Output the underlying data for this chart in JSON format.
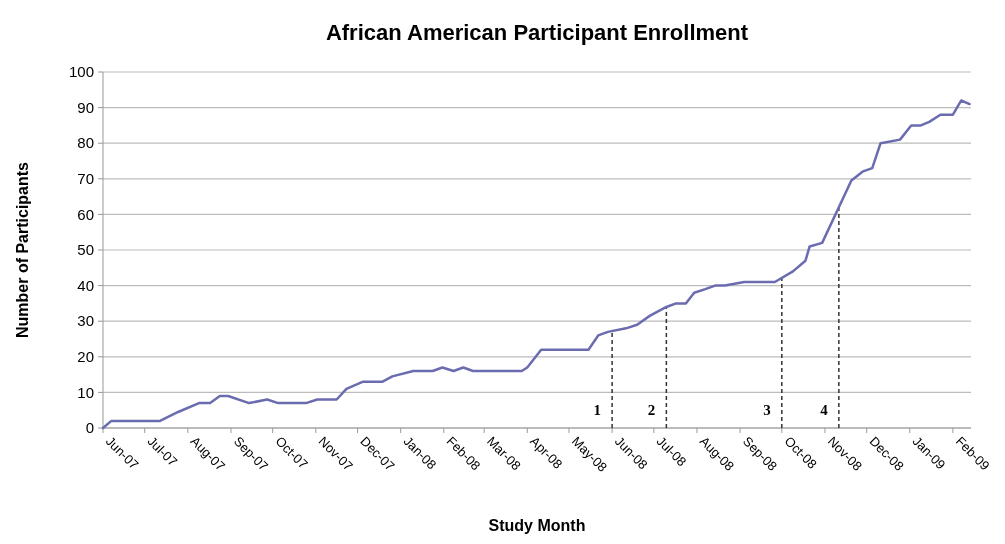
{
  "chart_data": {
    "type": "line",
    "title": "African American Participant Enrollment",
    "xlabel": "Study Month",
    "ylabel": "Number of Participants",
    "x": [
      "2007-06-01",
      "2007-06-07",
      "2007-07-12",
      "2007-07-25",
      "2007-08-09",
      "2007-08-17",
      "2007-08-24",
      "2007-08-30",
      "2007-09-14",
      "2007-09-27",
      "2007-10-05",
      "2007-10-25",
      "2007-11-02",
      "2007-11-16",
      "2007-11-23",
      "2007-12-05",
      "2007-12-19",
      "2007-12-26",
      "2008-01-10",
      "2008-01-24",
      "2008-01-31",
      "2008-02-08",
      "2008-02-15",
      "2008-02-22",
      "2008-03-28",
      "2008-04-01",
      "2008-04-11",
      "2008-05-15",
      "2008-05-22",
      "2008-05-29",
      "2008-06-11",
      "2008-06-19",
      "2008-06-28",
      "2008-07-10",
      "2008-07-17",
      "2008-07-24",
      "2008-07-30",
      "2008-08-07",
      "2008-08-14",
      "2008-08-21",
      "2008-09-04",
      "2008-09-26",
      "2008-10-09",
      "2008-10-18",
      "2008-10-21",
      "2008-10-30",
      "2008-11-11",
      "2008-11-20",
      "2008-11-28",
      "2008-12-05",
      "2008-12-11",
      "2008-12-25",
      "2009-01-02",
      "2009-01-09",
      "2009-01-15",
      "2009-01-23",
      "2009-02-01",
      "2009-02-07",
      "2009-02-13"
    ],
    "series": [
      {
        "color": "#6b6bb0",
        "values": [
          0,
          2,
          2,
          4.5,
          7,
          7,
          9,
          9,
          7,
          8,
          7,
          7,
          8,
          8,
          11,
          13,
          13,
          14.5,
          16,
          16,
          17,
          16,
          17,
          16,
          16,
          17,
          22,
          22,
          26,
          27,
          28,
          29,
          31.5,
          34,
          35,
          35,
          38,
          39,
          40,
          40,
          41,
          41,
          44,
          47,
          51,
          52,
          62,
          69.5,
          72,
          73,
          80,
          81,
          85,
          85,
          86,
          88,
          88,
          92,
          91
        ]
      }
    ],
    "xlim": [
      "2007-06-01",
      "2009-02-14"
    ],
    "xticks": [
      {
        "value": "2007-06-01",
        "label": "Jun-07"
      },
      {
        "value": "2007-07-01",
        "label": "Jul-07"
      },
      {
        "value": "2007-08-01",
        "label": "Aug-07"
      },
      {
        "value": "2007-09-01",
        "label": "Sep-07"
      },
      {
        "value": "2007-10-01",
        "label": "Oct-07"
      },
      {
        "value": "2007-11-01",
        "label": "Nov-07"
      },
      {
        "value": "2007-12-01",
        "label": "Dec-07"
      },
      {
        "value": "2008-01-01",
        "label": "Jan-08"
      },
      {
        "value": "2008-02-01",
        "label": "Feb-08"
      },
      {
        "value": "2008-03-01",
        "label": "Mar-08"
      },
      {
        "value": "2008-04-01",
        "label": "Apr-08"
      },
      {
        "value": "2008-05-01",
        "label": "May-08"
      },
      {
        "value": "2008-06-01",
        "label": "Jun-08"
      },
      {
        "value": "2008-07-01",
        "label": "Jul-08"
      },
      {
        "value": "2008-08-01",
        "label": "Aug-08"
      },
      {
        "value": "2008-09-01",
        "label": "Sep-08"
      },
      {
        "value": "2008-10-01",
        "label": "Oct-08"
      },
      {
        "value": "2008-11-01",
        "label": "Nov-08"
      },
      {
        "value": "2008-12-01",
        "label": "Dec-08"
      },
      {
        "value": "2009-01-01",
        "label": "Jan-09"
      },
      {
        "value": "2009-02-01",
        "label": "Feb-09"
      }
    ],
    "ylim": [
      0,
      100
    ],
    "yticks": [
      0,
      10,
      20,
      30,
      40,
      50,
      60,
      70,
      80,
      90,
      100
    ],
    "grid": "y",
    "marker": "none",
    "line_style": "solid",
    "ref_lines": [
      {
        "axis": "x",
        "value": "2008-06-01",
        "line_style": "dashed"
      },
      {
        "axis": "x",
        "value": "2008-07-10",
        "line_style": "dashed"
      },
      {
        "axis": "x",
        "value": "2008-10-01",
        "line_style": "dashed"
      },
      {
        "axis": "x",
        "value": "2008-11-11",
        "line_style": "dashed"
      }
    ],
    "annotations": [
      {
        "text": "1",
        "x": "2008-06-01",
        "y": 5
      },
      {
        "text": "2",
        "x": "2008-07-10",
        "y": 5
      },
      {
        "text": "3",
        "x": "2008-10-01",
        "y": 5
      },
      {
        "text": "4",
        "x": "2008-11-11",
        "y": 5
      }
    ]
  }
}
